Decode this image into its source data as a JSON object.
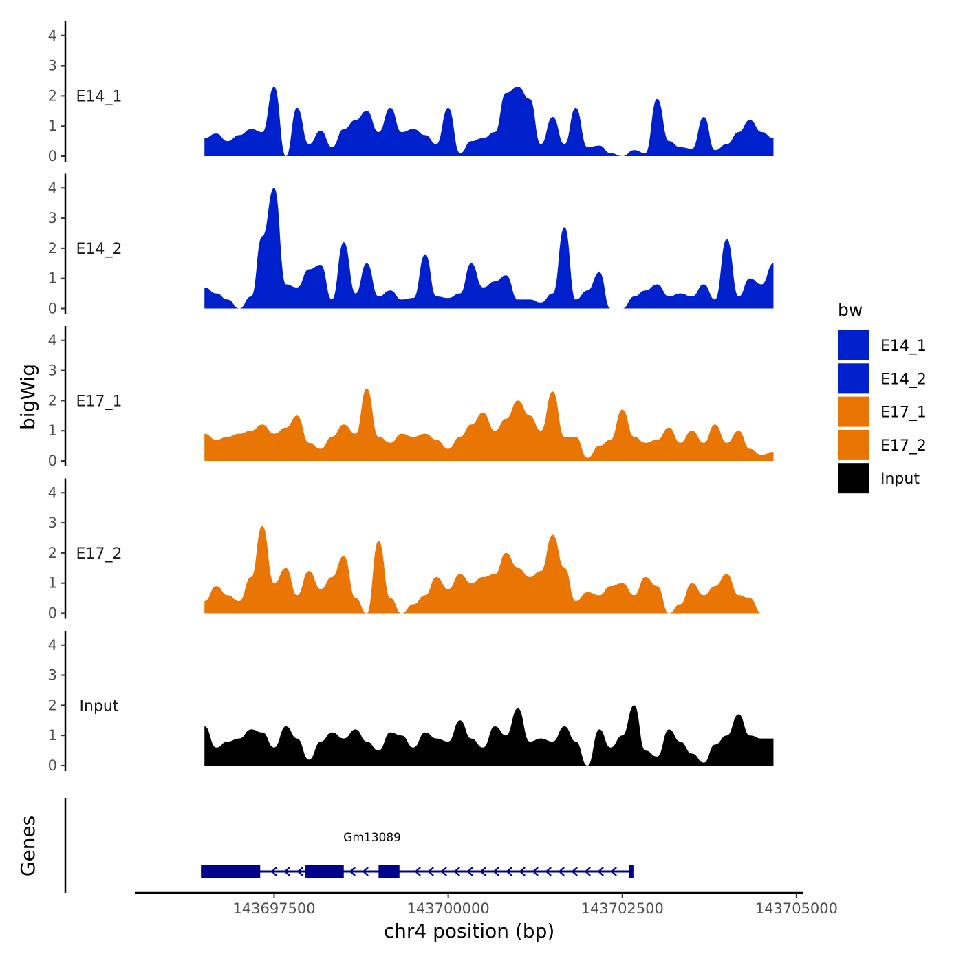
{
  "chart_data": {
    "type": "area",
    "xlabel": "chr4 position (bp)",
    "ylabel": "bigWig",
    "genes_label": "Genes",
    "xlim": [
      143695500,
      143705100
    ],
    "ylim": [
      0,
      4.2
    ],
    "y_ticks": [
      0,
      1,
      2,
      3,
      4
    ],
    "x_ticks": [
      143697500,
      143700000,
      143702500,
      143705000
    ],
    "x_tick_labels": [
      "143697500",
      "143700000",
      "143702500",
      "143705000"
    ],
    "legend": {
      "title": "bw",
      "position": "right",
      "entries": [
        {
          "label": "E14_1",
          "color": "#0020cc"
        },
        {
          "label": "E14_2",
          "color": "#0020cc"
        },
        {
          "label": "E17_1",
          "color": "#e87504"
        },
        {
          "label": "E17_2",
          "color": "#e87504"
        },
        {
          "label": "Input",
          "color": "#000000"
        }
      ]
    },
    "x": [
      143696500,
      143696670,
      143696830,
      143697000,
      143697170,
      143697330,
      143697500,
      143697670,
      143697830,
      143698000,
      143698170,
      143698330,
      143698500,
      143698670,
      143698830,
      143699000,
      143699170,
      143699330,
      143699500,
      143699670,
      143699830,
      143700000,
      143700170,
      143700330,
      143700500,
      143700670,
      143700830,
      143701000,
      143701170,
      143701330,
      143701500,
      143701670,
      143701830,
      143702000,
      143702170,
      143702330,
      143702500,
      143702670,
      143702830,
      143703000,
      143703170,
      143703330,
      143703500,
      143703670,
      143703830,
      143704000,
      143704170,
      143704330,
      143704500,
      143704670
    ],
    "series": [
      {
        "name": "E14_1",
        "color": "#0020cc",
        "values": [
          0.6,
          0.75,
          0.5,
          0.7,
          0.9,
          0.8,
          2.3,
          0,
          1.6,
          0.4,
          0.85,
          0.3,
          0.9,
          1.2,
          1.5,
          0.8,
          1.6,
          0.8,
          0.9,
          0.7,
          0.4,
          1.6,
          0.1,
          0.5,
          0.6,
          0.8,
          2.1,
          2.3,
          1.9,
          0.4,
          1.3,
          0.4,
          1.6,
          0.3,
          0.35,
          0.1,
          0,
          0.2,
          0.1,
          1.9,
          0.5,
          0.3,
          0.25,
          1.3,
          0.2,
          0.4,
          0.8,
          1.2,
          0.8,
          0.6
        ]
      },
      {
        "name": "E14_2",
        "color": "#0020cc",
        "values": [
          0.7,
          0.5,
          0.3,
          0,
          0.4,
          2.4,
          4.0,
          0.8,
          0.7,
          1.3,
          1.45,
          0.3,
          2.2,
          0.5,
          1.5,
          0.4,
          0.6,
          0.3,
          0.35,
          1.8,
          0.4,
          0.35,
          0.5,
          1.5,
          0.7,
          0.9,
          1.1,
          0.3,
          0.3,
          0.2,
          0.5,
          2.7,
          0.3,
          0.6,
          1.2,
          0,
          0,
          0.4,
          0.6,
          0.8,
          0.4,
          0.5,
          0.4,
          0.8,
          0.3,
          2.3,
          0.4,
          1.0,
          0.8,
          1.5
        ]
      },
      {
        "name": "E17_1",
        "color": "#e87504",
        "values": [
          0.9,
          0.7,
          0.8,
          0.9,
          1.0,
          1.2,
          0.9,
          1.1,
          1.5,
          0.6,
          0.4,
          0.8,
          1.2,
          0.9,
          2.4,
          0.8,
          0.6,
          0.9,
          0.8,
          0.9,
          0.7,
          0.4,
          0.8,
          1.2,
          1.6,
          1.0,
          1.4,
          2.0,
          1.5,
          1.0,
          2.3,
          0.8,
          0.8,
          0.1,
          0.5,
          0.7,
          1.7,
          0.8,
          0.6,
          0.7,
          1.1,
          0.6,
          1.0,
          0.6,
          1.2,
          0.6,
          1.0,
          0.4,
          0.2,
          0.3
        ]
      },
      {
        "name": "E17_2",
        "color": "#e87504",
        "values": [
          0.4,
          0.9,
          0.6,
          0.4,
          1.2,
          2.9,
          1.0,
          1.5,
          0.6,
          1.4,
          0.8,
          1.2,
          1.9,
          0.5,
          0,
          2.4,
          0.5,
          0,
          0.3,
          0.6,
          1.2,
          0.8,
          1.3,
          1.0,
          1.2,
          1.3,
          2.0,
          1.5,
          1.2,
          1.4,
          2.6,
          1.5,
          0.4,
          0.7,
          0.6,
          0.9,
          1.0,
          0.6,
          1.2,
          0.9,
          0,
          0.3,
          1.0,
          0.6,
          0.9,
          1.3,
          0.6,
          0.5,
          0,
          0
        ]
      },
      {
        "name": "Input",
        "color": "#000000",
        "values": [
          1.3,
          0.6,
          0.8,
          0.9,
          1.2,
          1.1,
          0.6,
          1.3,
          0.9,
          0.2,
          0.8,
          1.1,
          0.9,
          1.2,
          0.8,
          0.5,
          1.1,
          1.0,
          0.6,
          1.1,
          0.9,
          0.8,
          1.5,
          0.9,
          0.6,
          1.3,
          1.0,
          1.9,
          0.8,
          0.9,
          0.8,
          1.3,
          0.8,
          0,
          1.2,
          0.6,
          1.0,
          2.0,
          0.5,
          0.3,
          1.2,
          0.8,
          0.4,
          0.1,
          0.7,
          1.0,
          1.7,
          1.0,
          0.9,
          0.9
        ]
      }
    ],
    "gene": {
      "name": "Gm13089",
      "start": 143696450,
      "end": 143702650,
      "strand": "-",
      "exons": [
        [
          143696450,
          143697300
        ],
        [
          143697950,
          143698500
        ],
        [
          143699000,
          143699300
        ],
        [
          143702600,
          143702650
        ]
      ]
    }
  }
}
